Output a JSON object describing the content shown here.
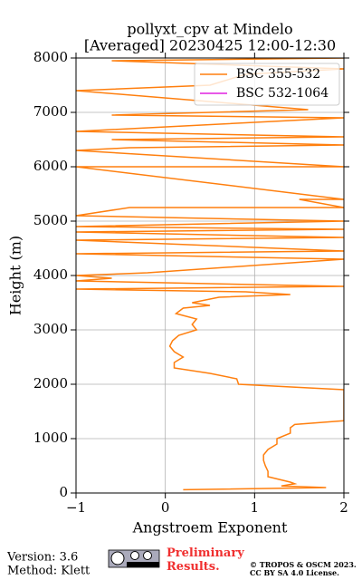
{
  "chart_data": {
    "type": "line",
    "title": "pollyxt_cpv at Mindelo",
    "subtitle": "[Averaged] 20230425 12:00-12:30",
    "x_label": "Angstroem Exponent",
    "y_label": "Height (m)",
    "y": [
      60,
      100,
      130,
      170,
      200,
      300,
      400,
      500,
      600,
      700,
      800,
      900,
      1000,
      1100,
      1200,
      1260,
      1330,
      1900,
      2000,
      2100,
      2200,
      2300,
      2400,
      2500,
      2600,
      2700,
      2800,
      2900,
      3000,
      3100,
      3200,
      3300,
      3400,
      3450,
      3500,
      3600,
      3650,
      3700,
      3750,
      3800,
      3900,
      3950,
      4000,
      4050,
      4300,
      4400,
      4450,
      4650,
      4700,
      4800,
      4850,
      4900,
      5000,
      5100,
      5250,
      5250,
      5400,
      5400,
      6000,
      6000,
      6300,
      6350,
      6400,
      6500,
      6550,
      6650,
      6900,
      6950,
      7050,
      7400,
      7500,
      7700,
      7800,
      7950,
      8000
    ],
    "series": [
      {
        "name": "BSC 355-532",
        "color": "#ff7f0e",
        "values": [
          0.2,
          1.8,
          1.3,
          1.45,
          1.4,
          1.15,
          1.15,
          1.12,
          1.1,
          1.1,
          1.15,
          1.25,
          1.25,
          1.4,
          1.4,
          1.45,
          2.0,
          2.0,
          0.82,
          0.8,
          0.5,
          0.1,
          0.1,
          0.2,
          0.1,
          0.05,
          0.08,
          0.15,
          0.35,
          0.3,
          0.35,
          0.12,
          0.2,
          0.5,
          0.3,
          0.6,
          1.4,
          0.9,
          -1.0,
          2.0,
          -1.0,
          -0.6,
          -1.0,
          -0.2,
          2.0,
          -1.0,
          2.0,
          -1.0,
          2.0,
          -1.0,
          2.0,
          -1.0,
          2.0,
          -1.0,
          -0.4,
          2.0,
          1.5,
          2.0,
          -1.0,
          2.0,
          -1.0,
          -0.4,
          2.0,
          -0.6,
          2.0,
          -1.0,
          2.0,
          -0.6,
          1.6,
          -1.0,
          0.5,
          0.9,
          2.0,
          -0.6,
          2.0
        ]
      },
      {
        "name": "BSC 532-1064",
        "color": "#e020e0",
        "values": [
          null,
          null,
          null,
          null,
          null,
          null,
          null,
          null,
          null,
          null,
          null,
          null,
          null,
          null,
          null,
          null,
          null,
          null,
          null,
          null,
          null,
          null,
          null,
          null,
          null,
          null,
          null,
          null,
          null,
          null,
          null,
          null,
          null,
          null,
          null,
          null,
          null,
          null,
          null,
          null,
          null,
          null,
          null,
          null,
          null,
          null,
          null,
          null,
          null,
          null,
          null,
          null,
          null,
          null,
          null,
          null,
          null,
          null,
          null,
          null,
          null,
          null,
          null,
          null,
          null,
          null,
          null,
          null,
          null,
          null,
          null,
          null,
          null,
          null,
          null
        ]
      }
    ],
    "xlim": [
      -1,
      2
    ],
    "xticks": [
      {
        "value": -1,
        "label": "−1"
      },
      0,
      1,
      2
    ],
    "ylim": [
      0,
      8000
    ],
    "yticks": [
      0,
      1000,
      2000,
      3000,
      4000,
      5000,
      6000,
      7000,
      8000
    ],
    "grid": true,
    "legend": "upper right"
  },
  "footer": {
    "version": "Version: 3.6",
    "method": "Method: Klett",
    "status": "Preliminary Results.",
    "copyright": "© TROPOS & OSCM 2023.",
    "license": "CC BY SA 4.0 License."
  }
}
